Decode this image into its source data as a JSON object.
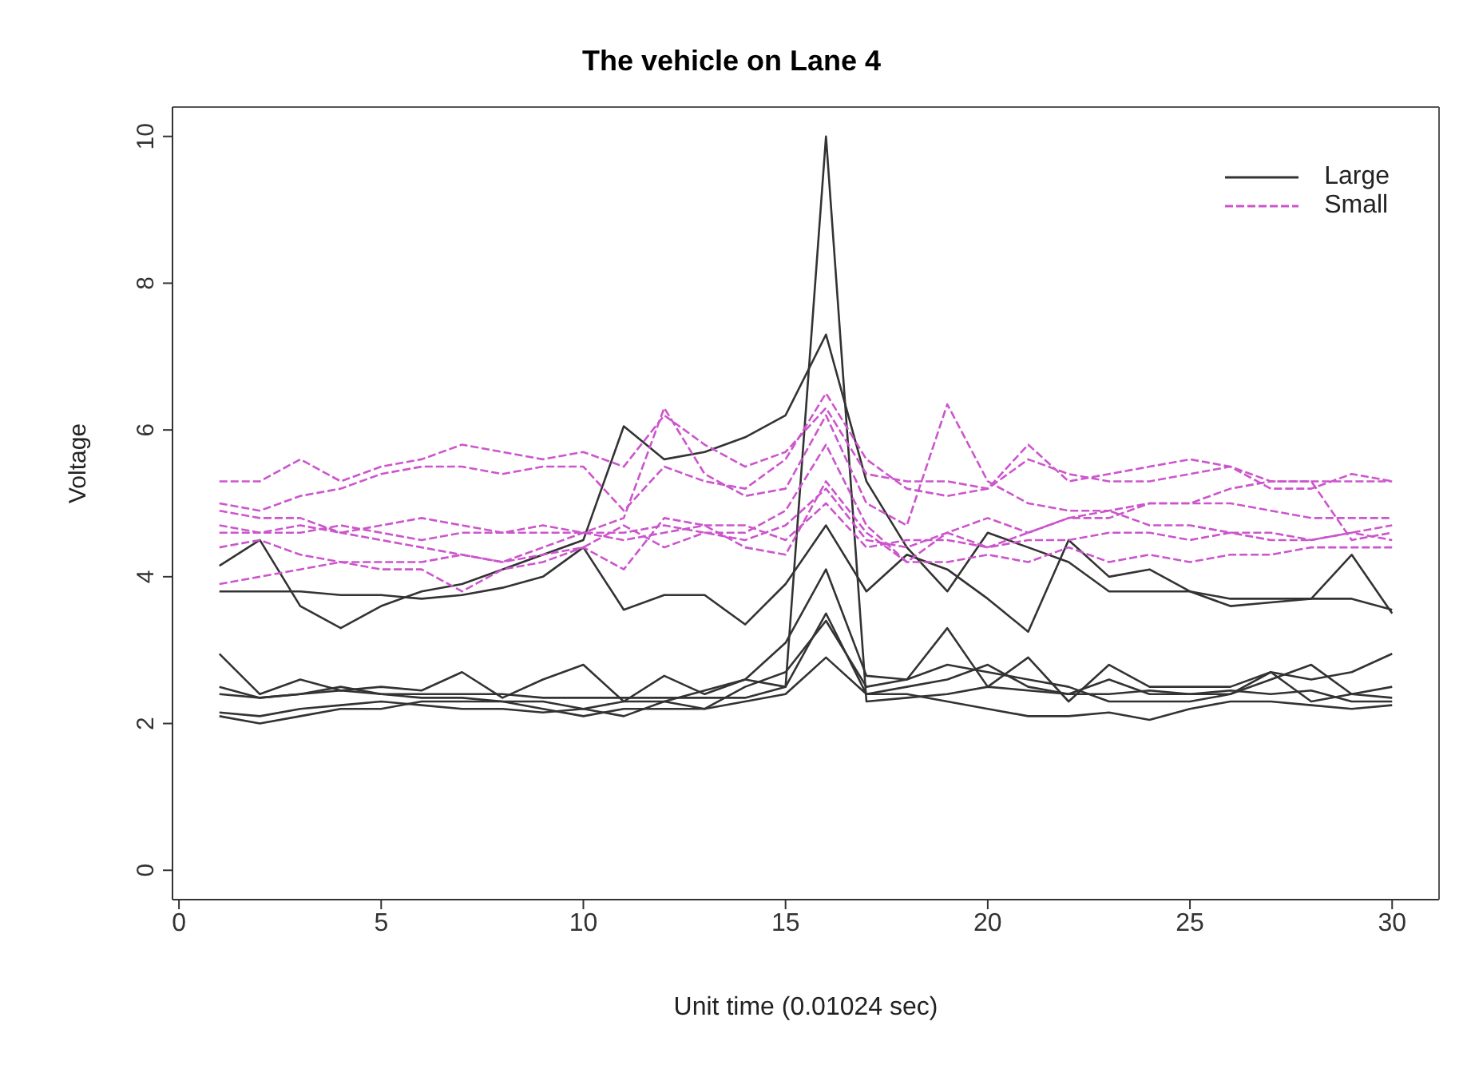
{
  "chart_data": {
    "type": "line",
    "title": "The vehicle on Lane 4",
    "xlabel": "Unit time (0.01024 sec)",
    "ylabel": "Voltage",
    "x": [
      1,
      2,
      3,
      4,
      5,
      6,
      7,
      8,
      9,
      10,
      11,
      12,
      13,
      14,
      15,
      16,
      17,
      18,
      19,
      20,
      21,
      22,
      23,
      24,
      25,
      26,
      27,
      28,
      29,
      30
    ],
    "xlim": [
      -0.16,
      31.16
    ],
    "xticks": [
      0,
      5,
      10,
      15,
      20,
      25,
      30
    ],
    "ylim": [
      -0.4,
      10.4
    ],
    "yticks": [
      0,
      2,
      4,
      6,
      8,
      10
    ],
    "grid": false,
    "legend": "top right",
    "marker": "none",
    "series": [
      {
        "name": "Large",
        "color": "#333333",
        "line_style": "solid",
        "values": [
          4.15,
          4.5,
          3.6,
          3.3,
          3.6,
          3.8,
          3.9,
          4.1,
          4.3,
          4.5,
          6.05,
          5.6,
          5.7,
          5.9,
          6.2,
          7.3,
          5.3,
          4.4,
          3.8,
          4.6,
          4.4,
          4.2,
          3.8,
          3.8,
          3.8,
          3.7,
          3.7,
          3.7,
          4.3,
          3.5
        ]
      },
      {
        "color": "#333333",
        "line_style": "solid",
        "values": [
          3.8,
          3.8,
          3.8,
          3.75,
          3.75,
          3.7,
          3.75,
          3.85,
          4.0,
          4.4,
          3.55,
          3.75,
          3.75,
          3.35,
          3.9,
          4.7,
          3.8,
          4.3,
          4.1,
          3.7,
          3.25,
          4.5,
          4.0,
          4.1,
          3.8,
          3.6,
          3.65,
          3.7,
          3.7,
          3.55
        ]
      },
      {
        "color": "#333333",
        "line_style": "solid",
        "values": [
          2.4,
          2.35,
          2.4,
          2.45,
          2.4,
          2.4,
          2.4,
          2.4,
          2.35,
          2.35,
          2.35,
          2.35,
          2.35,
          2.35,
          2.5,
          10,
          2.3,
          2.35,
          2.4,
          2.5,
          2.45,
          2.4,
          2.4,
          2.45,
          2.4,
          2.45,
          2.4,
          2.45,
          2.3,
          2.3
        ]
      },
      {
        "color": "#333333",
        "line_style": "solid",
        "values": [
          2.95,
          2.4,
          2.6,
          2.45,
          2.5,
          2.45,
          2.7,
          2.35,
          2.6,
          2.8,
          2.3,
          2.65,
          2.4,
          2.6,
          3.1,
          4.1,
          2.65,
          2.6,
          3.3,
          2.5,
          2.9,
          2.3,
          2.8,
          2.5,
          2.5,
          2.5,
          2.7,
          2.3,
          2.4,
          2.5
        ]
      },
      {
        "color": "#333333",
        "line_style": "solid",
        "values": [
          2.5,
          2.35,
          2.4,
          2.5,
          2.4,
          2.35,
          2.35,
          2.3,
          2.3,
          2.2,
          2.3,
          2.3,
          2.45,
          2.6,
          2.5,
          3.5,
          2.4,
          2.5,
          2.6,
          2.8,
          2.5,
          2.4,
          2.6,
          2.4,
          2.4,
          2.4,
          2.7,
          2.6,
          2.7,
          2.95
        ]
      },
      {
        "color": "#333333",
        "line_style": "solid",
        "values": [
          2.1,
          2.0,
          2.1,
          2.2,
          2.2,
          2.3,
          2.3,
          2.3,
          2.2,
          2.1,
          2.2,
          2.2,
          2.2,
          2.3,
          2.4,
          2.9,
          2.4,
          2.4,
          2.3,
          2.2,
          2.1,
          2.1,
          2.15,
          2.05,
          2.2,
          2.3,
          2.3,
          2.25,
          2.2,
          2.25
        ]
      },
      {
        "color": "#333333",
        "line_style": "solid",
        "values": [
          2.15,
          2.1,
          2.2,
          2.25,
          2.3,
          2.25,
          2.2,
          2.2,
          2.15,
          2.2,
          2.1,
          2.3,
          2.2,
          2.5,
          2.7,
          3.4,
          2.5,
          2.6,
          2.8,
          2.7,
          2.6,
          2.5,
          2.3,
          2.3,
          2.3,
          2.4,
          2.6,
          2.8,
          2.4,
          2.35
        ]
      },
      {
        "name": "Small",
        "color": "#cc55cc",
        "line_style": "dashed",
        "values": [
          5.3,
          5.3,
          5.6,
          5.3,
          5.5,
          5.6,
          5.8,
          5.7,
          5.6,
          5.7,
          5.5,
          6.2,
          5.8,
          5.5,
          5.7,
          6.3,
          5.4,
          5.3,
          5.3,
          5.2,
          5.6,
          5.4,
          5.3,
          5.3,
          5.4,
          5.5,
          5.3,
          5.3,
          5.3,
          5.3
        ]
      },
      {
        "color": "#cc55cc",
        "line_style": "dashed",
        "values": [
          5.0,
          4.9,
          5.1,
          5.2,
          5.4,
          5.5,
          5.5,
          5.4,
          5.5,
          5.5,
          4.9,
          5.5,
          5.3,
          5.2,
          5.6,
          6.5,
          5.6,
          5.2,
          5.1,
          5.2,
          5.8,
          5.3,
          5.4,
          5.5,
          5.6,
          5.5,
          5.2,
          5.2,
          5.4,
          5.3
        ]
      },
      {
        "color": "#cc55cc",
        "line_style": "dashed",
        "values": [
          4.9,
          4.8,
          4.8,
          4.6,
          4.5,
          4.4,
          4.3,
          4.2,
          4.4,
          4.6,
          4.8,
          6.3,
          5.4,
          5.1,
          5.2,
          6.2,
          5.0,
          4.7,
          6.35,
          5.3,
          5.0,
          4.9,
          4.9,
          5.0,
          5.0,
          5.0,
          4.9,
          4.8,
          4.8,
          4.8
        ]
      },
      {
        "color": "#cc55cc",
        "line_style": "dashed",
        "values": [
          4.7,
          4.6,
          4.6,
          4.7,
          4.6,
          4.5,
          4.6,
          4.6,
          4.6,
          4.6,
          4.6,
          4.7,
          4.6,
          4.5,
          4.7,
          5.2,
          4.5,
          4.4,
          4.6,
          4.8,
          4.6,
          4.8,
          4.9,
          4.7,
          4.7,
          4.6,
          4.6,
          4.5,
          4.6,
          4.7
        ]
      },
      {
        "color": "#cc55cc",
        "line_style": "dashed",
        "values": [
          4.6,
          4.6,
          4.7,
          4.6,
          4.7,
          4.8,
          4.7,
          4.6,
          4.7,
          4.6,
          4.5,
          4.6,
          4.7,
          4.7,
          4.5,
          5.0,
          4.4,
          4.5,
          4.5,
          4.4,
          4.5,
          4.5,
          4.6,
          4.6,
          4.5,
          4.6,
          4.5,
          4.5,
          4.6,
          4.5
        ]
      },
      {
        "color": "#cc55cc",
        "line_style": "dashed",
        "values": [
          4.4,
          4.5,
          4.3,
          4.2,
          4.1,
          4.1,
          3.8,
          4.1,
          4.2,
          4.4,
          4.1,
          4.8,
          4.7,
          4.4,
          4.3,
          5.3,
          4.6,
          4.2,
          4.2,
          4.3,
          4.2,
          4.4,
          4.2,
          4.3,
          4.2,
          4.3,
          4.3,
          4.4,
          4.4,
          4.4
        ]
      },
      {
        "color": "#cc55cc",
        "line_style": "dashed",
        "values": [
          3.9,
          4.0,
          4.1,
          4.2,
          4.2,
          4.2,
          4.3,
          4.2,
          4.3,
          4.4,
          4.7,
          4.4,
          4.6,
          4.6,
          4.9,
          5.8,
          4.7,
          4.2,
          4.6,
          4.4,
          4.6,
          4.8,
          4.8,
          5.0,
          5.0,
          5.2,
          5.3,
          5.3,
          4.5,
          4.6
        ]
      }
    ]
  }
}
